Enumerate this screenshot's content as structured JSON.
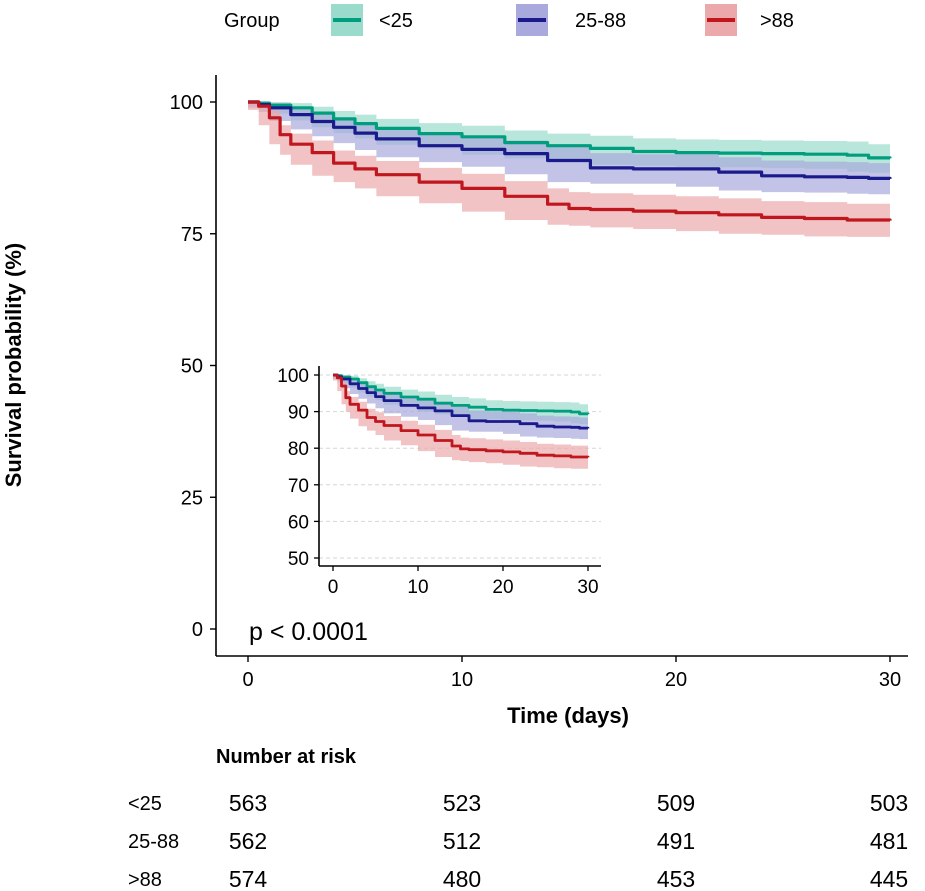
{
  "legend": {
    "title": "Group",
    "items": [
      {
        "label": "<25",
        "line_color": "#009E7F",
        "band_color": "#9ADBCB"
      },
      {
        "label": "25-88",
        "line_color": "#1A1A8C",
        "band_color": "#A9A9DD"
      },
      {
        "label": ">88",
        "line_color": "#C0161E",
        "band_color": "#EBA9AB"
      }
    ]
  },
  "chart_data": {
    "type": "line",
    "title": "",
    "xlabel": "Time (days)",
    "ylabel": "Survival probability (%)",
    "xlim": [
      0,
      30
    ],
    "ylim": [
      0,
      100
    ],
    "x_ticks": [
      0,
      10,
      20,
      30
    ],
    "y_ticks": [
      0,
      25,
      50,
      75,
      100
    ],
    "annotation": "p < 0.0001",
    "series": [
      {
        "name": "<25",
        "color": "#009E7F",
        "band_color": "#9ADBCB",
        "x": [
          0,
          0.5,
          1,
          2,
          3,
          4,
          5,
          6,
          8,
          10,
          12,
          14,
          16,
          18,
          20,
          22,
          24,
          26,
          28,
          29,
          30
        ],
        "y": [
          100,
          99.8,
          99.4,
          98.9,
          97.9,
          96.8,
          95.9,
          95.0,
          94.0,
          93.4,
          92.3,
          91.7,
          91.2,
          90.6,
          90.4,
          90.3,
          90.2,
          90.1,
          89.9,
          89.4,
          89.3
        ],
        "lower": [
          100,
          99.4,
          98.7,
          97.8,
          96.5,
          95.2,
          94.1,
          93.1,
          91.9,
          91.2,
          90.0,
          89.3,
          88.8,
          88.1,
          87.9,
          87.7,
          87.6,
          87.5,
          87.3,
          86.8,
          86.6
        ],
        "upper": [
          100,
          100,
          100,
          99.8,
          99.1,
          98.3,
          97.6,
          96.8,
          96.0,
          95.5,
          94.6,
          94.0,
          93.6,
          93.1,
          92.9,
          92.8,
          92.7,
          92.6,
          92.5,
          92.0,
          91.9
        ]
      },
      {
        "name": "25-88",
        "color": "#1A1A8C",
        "band_color": "#A9A9DD",
        "x": [
          0,
          0.5,
          1,
          2,
          3,
          4,
          5,
          6,
          8,
          10,
          12,
          14,
          16,
          18,
          20,
          22,
          24,
          26,
          28,
          29,
          30
        ],
        "y": [
          100,
          99.5,
          98.9,
          97.6,
          96.3,
          95.2,
          94.1,
          93.0,
          91.7,
          91.0,
          90.2,
          88.9,
          87.5,
          87.3,
          87.3,
          86.7,
          86.0,
          85.8,
          85.7,
          85.5,
          85.4
        ],
        "lower": [
          100,
          98.9,
          98.1,
          96.4,
          94.8,
          93.5,
          92.2,
          90.9,
          89.5,
          88.6,
          87.7,
          86.3,
          84.8,
          84.5,
          84.5,
          83.9,
          83.2,
          82.9,
          82.8,
          82.6,
          82.5
        ],
        "upper": [
          100,
          100,
          99.8,
          98.8,
          97.8,
          97.0,
          96.0,
          95.1,
          94.0,
          93.4,
          92.7,
          91.5,
          90.3,
          90.1,
          90.1,
          89.5,
          88.9,
          88.7,
          88.6,
          88.4,
          88.3
        ]
      },
      {
        "name": ">88",
        "color": "#C0161E",
        "band_color": "#EBA9AB",
        "x": [
          0,
          0.5,
          1,
          1.5,
          2,
          3,
          4,
          5,
          6,
          8,
          10,
          12,
          14,
          15,
          16,
          18,
          20,
          22,
          24,
          26,
          28,
          30
        ],
        "y": [
          100,
          99.2,
          97.0,
          93.8,
          92.0,
          90.4,
          88.4,
          87.3,
          86.2,
          84.8,
          83.6,
          82.1,
          80.6,
          79.8,
          79.6,
          79.3,
          79.0,
          78.6,
          78.1,
          77.9,
          77.6,
          77.5
        ],
        "lower": [
          100,
          98.5,
          95.6,
          92.0,
          90.0,
          88.1,
          86.0,
          84.8,
          83.6,
          82.1,
          80.8,
          79.2,
          77.6,
          76.7,
          76.5,
          76.2,
          75.9,
          75.5,
          75.0,
          74.8,
          74.5,
          74.4
        ],
        "upper": [
          100,
          99.9,
          98.4,
          95.6,
          94.0,
          92.7,
          90.8,
          89.8,
          88.8,
          87.5,
          86.4,
          85.0,
          83.6,
          82.9,
          82.7,
          82.4,
          82.1,
          81.7,
          81.2,
          81.0,
          80.7,
          80.6
        ]
      }
    ],
    "inset": {
      "xlim": [
        0,
        30
      ],
      "ylim": [
        50,
        100
      ],
      "x_ticks": [
        0,
        10,
        20,
        30
      ],
      "y_ticks": [
        50,
        60,
        70,
        80,
        90,
        100
      ]
    }
  },
  "risk_table": {
    "title": "Number at risk",
    "times": [
      0,
      10,
      20,
      30
    ],
    "rows": [
      {
        "group": "<25",
        "values": [
          "563",
          "523",
          "509",
          "503"
        ]
      },
      {
        "group": "25-88",
        "values": [
          "562",
          "512",
          "491",
          "481"
        ]
      },
      {
        "group": ">88",
        "values": [
          "574",
          "480",
          "453",
          "445"
        ]
      }
    ]
  }
}
